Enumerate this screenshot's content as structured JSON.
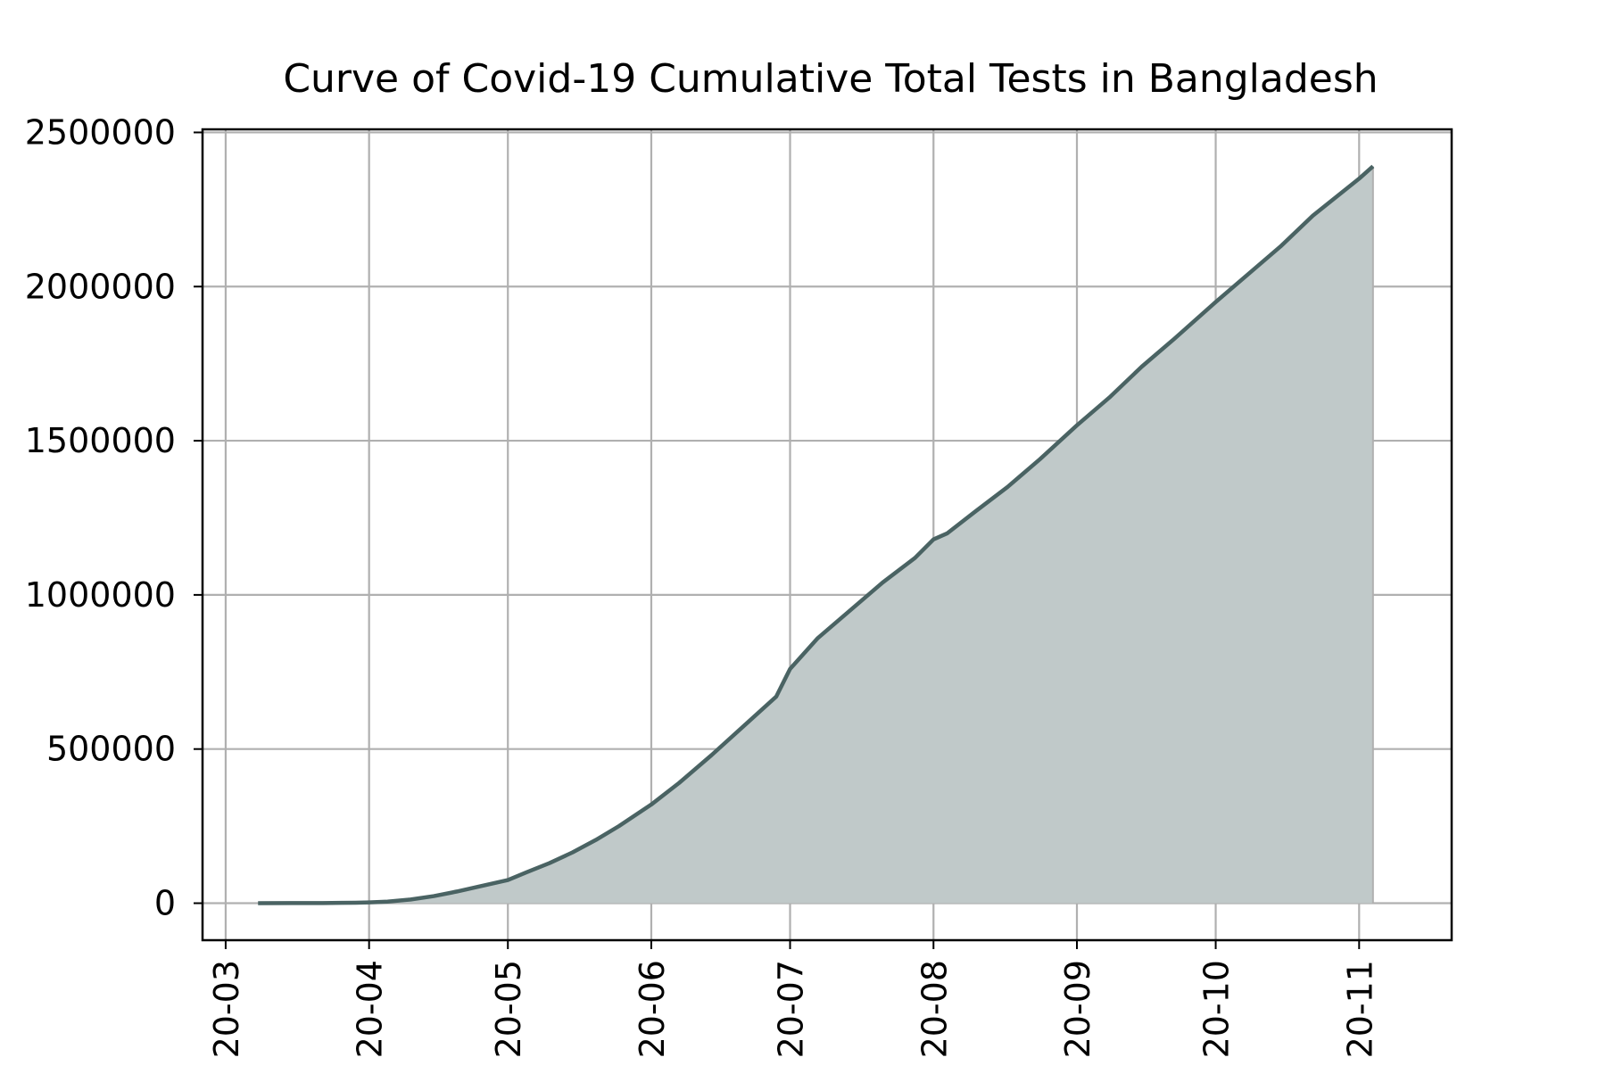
{
  "chart_data": {
    "type": "area",
    "title": "Curve of Covid-19 Cumulative Total Tests in Bangladesh",
    "xlabel": "",
    "ylabel": "",
    "x_ticks": [
      "2020-03-01",
      "2020-04-01",
      "2020-05-01",
      "2020-06-01",
      "2020-07-01",
      "2020-08-01",
      "2020-09-01",
      "2020-10-01",
      "2020-11-01"
    ],
    "x_tick_labels": [
      "20-03",
      "20-04",
      "20-05",
      "20-06",
      "20-07",
      "20-08",
      "20-09",
      "20-10",
      "20-11"
    ],
    "y_ticks": [
      0,
      500000,
      1000000,
      1500000,
      2000000,
      2500000
    ],
    "y_tick_labels": [
      "0",
      "500000",
      "1000000",
      "1500000",
      "2000000",
      "2500000"
    ],
    "xlim": [
      "2020-02-25",
      "2020-11-21"
    ],
    "ylim": [
      -120000,
      2510000
    ],
    "grid": true,
    "legend": "none",
    "colors": {
      "line": "#4a6363",
      "fill": "#c0c9c9",
      "grid": "#b0b0b0"
    },
    "series": [
      {
        "x": [
          "2020-03-08",
          "2020-03-15",
          "2020-03-22",
          "2020-03-29",
          "2020-04-01",
          "2020-04-05",
          "2020-04-10",
          "2020-04-15",
          "2020-04-20",
          "2020-04-25",
          "2020-05-01",
          "2020-05-05",
          "2020-05-10",
          "2020-05-15",
          "2020-05-20",
          "2020-05-25",
          "2020-06-01",
          "2020-06-07",
          "2020-06-14",
          "2020-06-21",
          "2020-06-28",
          "2020-07-01",
          "2020-07-07",
          "2020-07-14",
          "2020-07-21",
          "2020-07-28",
          "2020-08-01",
          "2020-08-04",
          "2020-08-10",
          "2020-08-17",
          "2020-08-24",
          "2020-09-01",
          "2020-09-08",
          "2020-09-15",
          "2020-09-22",
          "2020-10-01",
          "2020-10-08",
          "2020-10-15",
          "2020-10-22",
          "2020-11-01",
          "2020-11-04"
        ],
        "values": [
          0,
          300,
          600,
          1500,
          2500,
          5000,
          12000,
          23000,
          38000,
          55000,
          75000,
          100000,
          130000,
          165000,
          205000,
          250000,
          320000,
          390000,
          480000,
          575000,
          670000,
          760000,
          860000,
          950000,
          1040000,
          1120000,
          1180000,
          1200000,
          1270000,
          1350000,
          1440000,
          1550000,
          1640000,
          1740000,
          1830000,
          1950000,
          2040000,
          2130000,
          2230000,
          2350000,
          2390000
        ]
      }
    ]
  }
}
